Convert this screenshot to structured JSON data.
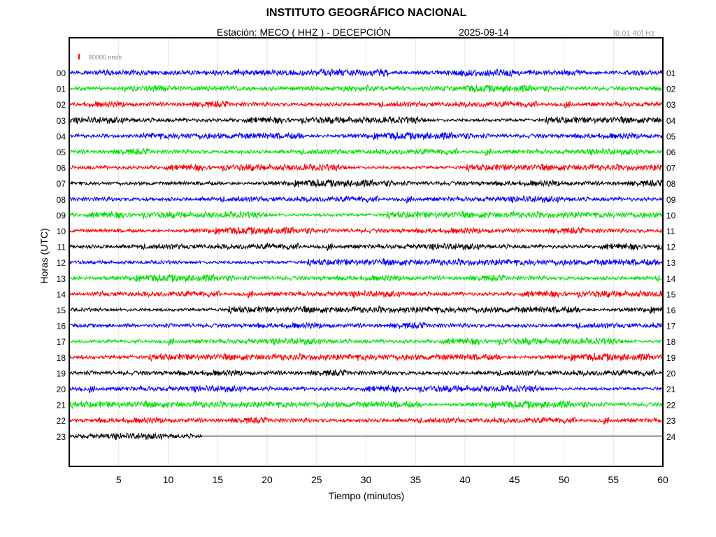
{
  "header": {
    "title": "INSTITUTO GEOGRÁFICO NACIONAL",
    "station_line": "Estación:  MECO ( HHZ ) - DECEPCIÓN",
    "date": "2025-09-14",
    "frequency": "[0.01 40] Hz"
  },
  "colors": {
    "cycle": [
      "#0000ff",
      "#00e000",
      "#ff0000",
      "#000000"
    ],
    "scale_marker": "#ff0000",
    "frame": "#000000"
  },
  "chart_data": {
    "type": "line",
    "title": "INSTITUTO GEOGRÁFICO NACIONAL",
    "subtitle": "Estación:  MECO ( HHZ ) - DECEPCIÓN",
    "xlabel": "Tiempo (minutos)",
    "ylabel": "Horas (UTC)",
    "xlim": [
      0,
      60
    ],
    "x_ticks": [
      "5",
      "10",
      "15",
      "20",
      "25",
      "30",
      "35",
      "40",
      "45",
      "50",
      "55",
      "60"
    ],
    "y_ticks_left": [
      "00",
      "01",
      "02",
      "03",
      "04",
      "05",
      "06",
      "07",
      "08",
      "09",
      "10",
      "11",
      "12",
      "13",
      "14",
      "15",
      "16",
      "17",
      "18",
      "19",
      "20",
      "21",
      "22",
      "23"
    ],
    "y_ticks_right": [
      "01",
      "02",
      "03",
      "04",
      "05",
      "06",
      "07",
      "08",
      "09",
      "10",
      "11",
      "12",
      "13",
      "14",
      "15",
      "16",
      "17",
      "18",
      "19",
      "20",
      "21",
      "22",
      "23",
      "24"
    ],
    "grid": true,
    "scale_label": "80000 nm/s",
    "last_trace_end_minute": 13.5,
    "series": [
      {
        "hour": "00",
        "color": "#0000ff"
      },
      {
        "hour": "01",
        "color": "#00e000"
      },
      {
        "hour": "02",
        "color": "#ff0000"
      },
      {
        "hour": "03",
        "color": "#000000"
      },
      {
        "hour": "04",
        "color": "#0000ff"
      },
      {
        "hour": "05",
        "color": "#00e000"
      },
      {
        "hour": "06",
        "color": "#ff0000"
      },
      {
        "hour": "07",
        "color": "#000000"
      },
      {
        "hour": "08",
        "color": "#0000ff"
      },
      {
        "hour": "09",
        "color": "#00e000"
      },
      {
        "hour": "10",
        "color": "#ff0000"
      },
      {
        "hour": "11",
        "color": "#000000"
      },
      {
        "hour": "12",
        "color": "#0000ff"
      },
      {
        "hour": "13",
        "color": "#00e000"
      },
      {
        "hour": "14",
        "color": "#ff0000"
      },
      {
        "hour": "15",
        "color": "#000000"
      },
      {
        "hour": "16",
        "color": "#0000ff"
      },
      {
        "hour": "17",
        "color": "#00e000"
      },
      {
        "hour": "18",
        "color": "#ff0000"
      },
      {
        "hour": "19",
        "color": "#000000"
      },
      {
        "hour": "20",
        "color": "#0000ff"
      },
      {
        "hour": "21",
        "color": "#00e000"
      },
      {
        "hour": "22",
        "color": "#ff0000"
      },
      {
        "hour": "23",
        "color": "#000000"
      }
    ]
  }
}
